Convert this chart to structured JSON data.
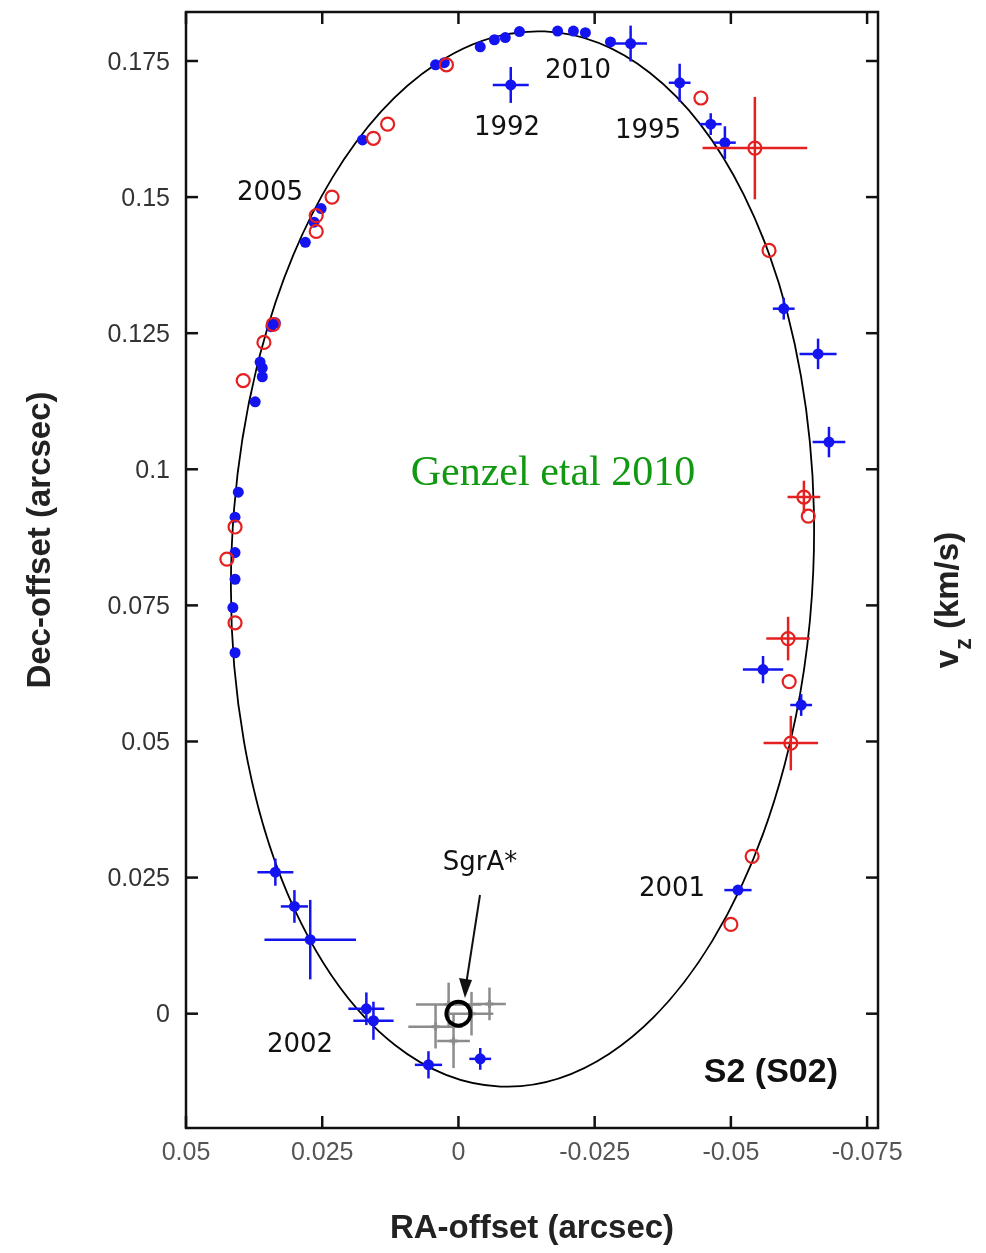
{
  "chart_data": {
    "type": "scatter",
    "xlabel": "RA-offset (arcsec)",
    "ylabel": "Dec-offset (arcsec)",
    "y2label": "v$_{z}$ (km/s)",
    "xlim": [
      0.05,
      -0.077
    ],
    "xticks": [
      0.05,
      0.025,
      0,
      -0.025,
      -0.05,
      -0.075
    ],
    "ylim": [
      -0.021,
      0.184
    ],
    "yticks": [
      0,
      0.025,
      0.05,
      0.075,
      0.1,
      0.125,
      0.15,
      0.175
    ],
    "grid": false,
    "legend": false,
    "series": [
      {
        "color": "#1414f0",
        "marker": "circle",
        "x": [
          0.0364,
          0.036,
          0.0373,
          0.0404,
          0.041,
          0.041,
          0.041,
          0.0414,
          0.041,
          0.036,
          0.0344,
          0.0336,
          0.0281,
          0.0265,
          0.0252,
          0.0176,
          0.0042,
          0.0026,
          -0.004,
          -0.0066,
          -0.0086,
          -0.0112,
          -0.0182,
          -0.0211,
          -0.0233,
          -0.0279,
          -0.0316,
          -0.0096,
          -0.0406,
          -0.0463,
          -0.0489,
          -0.0597,
          -0.066,
          -0.068,
          -0.0559,
          -0.0629,
          -0.0513,
          0.0336,
          0.0301,
          0.0272,
          0.0169,
          0.0156,
          0.0055,
          -0.004
        ],
        "values": [
          0.1197,
          0.117,
          0.1124,
          0.0958,
          0.0912,
          0.0847,
          0.0798,
          0.0746,
          0.0663,
          0.1186,
          0.1262,
          0.1269,
          0.1417,
          0.1454,
          0.1479,
          0.1605,
          0.1743,
          0.1747,
          0.1776,
          0.1789,
          0.1793,
          0.1804,
          0.1805,
          0.1805,
          0.1802,
          0.1785,
          0.1782,
          0.1706,
          0.171,
          0.1634,
          0.16,
          0.1295,
          0.1212,
          0.105,
          0.0632,
          0.0567,
          0.0227,
          0.026,
          0.0197,
          0.0136,
          0.0009,
          -0.0013,
          -0.0094,
          -0.0083
        ],
        "errors": [
          null,
          null,
          null,
          null,
          null,
          null,
          null,
          null,
          null,
          null,
          null,
          null,
          null,
          null,
          null,
          null,
          null,
          null,
          null,
          null,
          null,
          null,
          null,
          null,
          null,
          null,
          0.0033,
          0.0033,
          0.0035,
          0.002,
          0.003,
          0.002,
          0.0028,
          0.0028,
          0.0025,
          0.002,
          null,
          0.0025,
          0.003,
          0.0073,
          0.003,
          0.0035,
          0.0025,
          0.002
        ],
        "xerrors": [
          null,
          null,
          null,
          null,
          null,
          null,
          null,
          null,
          null,
          null,
          null,
          null,
          null,
          null,
          null,
          null,
          null,
          null,
          null,
          null,
          null,
          null,
          null,
          null,
          null,
          null,
          0.003,
          0.0033,
          0.002,
          0.002,
          0.002,
          0.002,
          0.0034,
          0.003,
          0.0037,
          0.002,
          0.0025,
          0.0033,
          0.0025,
          0.0084,
          0.0033,
          0.0037,
          0.0025,
          0.002
        ]
      },
      {
        "color": "#e42020",
        "marker": "circle",
        "x": [
          0.0022,
          0.0156,
          0.013,
          0.0232,
          0.0261,
          0.0261,
          0.034,
          0.0357,
          -0.0445,
          -0.0544,
          -0.057,
          0.0395,
          0.041,
          0.0425,
          0.041,
          -0.0634,
          -0.0642,
          -0.0605,
          -0.0607,
          -0.061,
          -0.0539,
          -0.05
        ],
        "values": [
          0.1743,
          0.1608,
          0.1634,
          0.15,
          0.1466,
          0.1437,
          0.1266,
          0.1233,
          0.1682,
          0.159,
          0.1402,
          0.1163,
          0.0894,
          0.0835,
          0.0718,
          0.0949,
          0.0914,
          0.0689,
          0.061,
          0.0497,
          0.0289,
          0.0164
        ],
        "errors": [
          null,
          null,
          null,
          null,
          null,
          null,
          null,
          null,
          null,
          0.0094,
          null,
          null,
          null,
          null,
          null,
          0.003,
          null,
          0.004,
          null,
          0.005,
          null,
          null
        ],
        "xerrors": [
          null,
          null,
          null,
          null,
          null,
          null,
          null,
          null,
          null,
          0.0096,
          null,
          null,
          null,
          null,
          null,
          0.003,
          null,
          0.004,
          null,
          0.005,
          null,
          null
        ]
      },
      {
        "color": "#8c8c8c",
        "marker": "cross",
        "x": [
          0.0018,
          -0.0057,
          0.0042,
          0.0009,
          -0.0024
        ],
        "values": [
          0.0017,
          0.0018,
          -0.0024,
          -0.005,
          0
        ],
        "errors": [
          0.004,
          0.003,
          0.004,
          0.005,
          0.004
        ],
        "xerrors": [
          0.006,
          0.003,
          0.005,
          0.003,
          0.004
        ]
      },
      {
        "color": "#000000",
        "marker": "circle",
        "x": [
          0
        ],
        "values": [
          0
        ]
      }
    ],
    "annotations": [
      "Genzel etal 2010",
      "S2 (S02)",
      "1992",
      "2010",
      "1995",
      "2005",
      "2001",
      "2002",
      "SgrA*"
    ]
  }
}
